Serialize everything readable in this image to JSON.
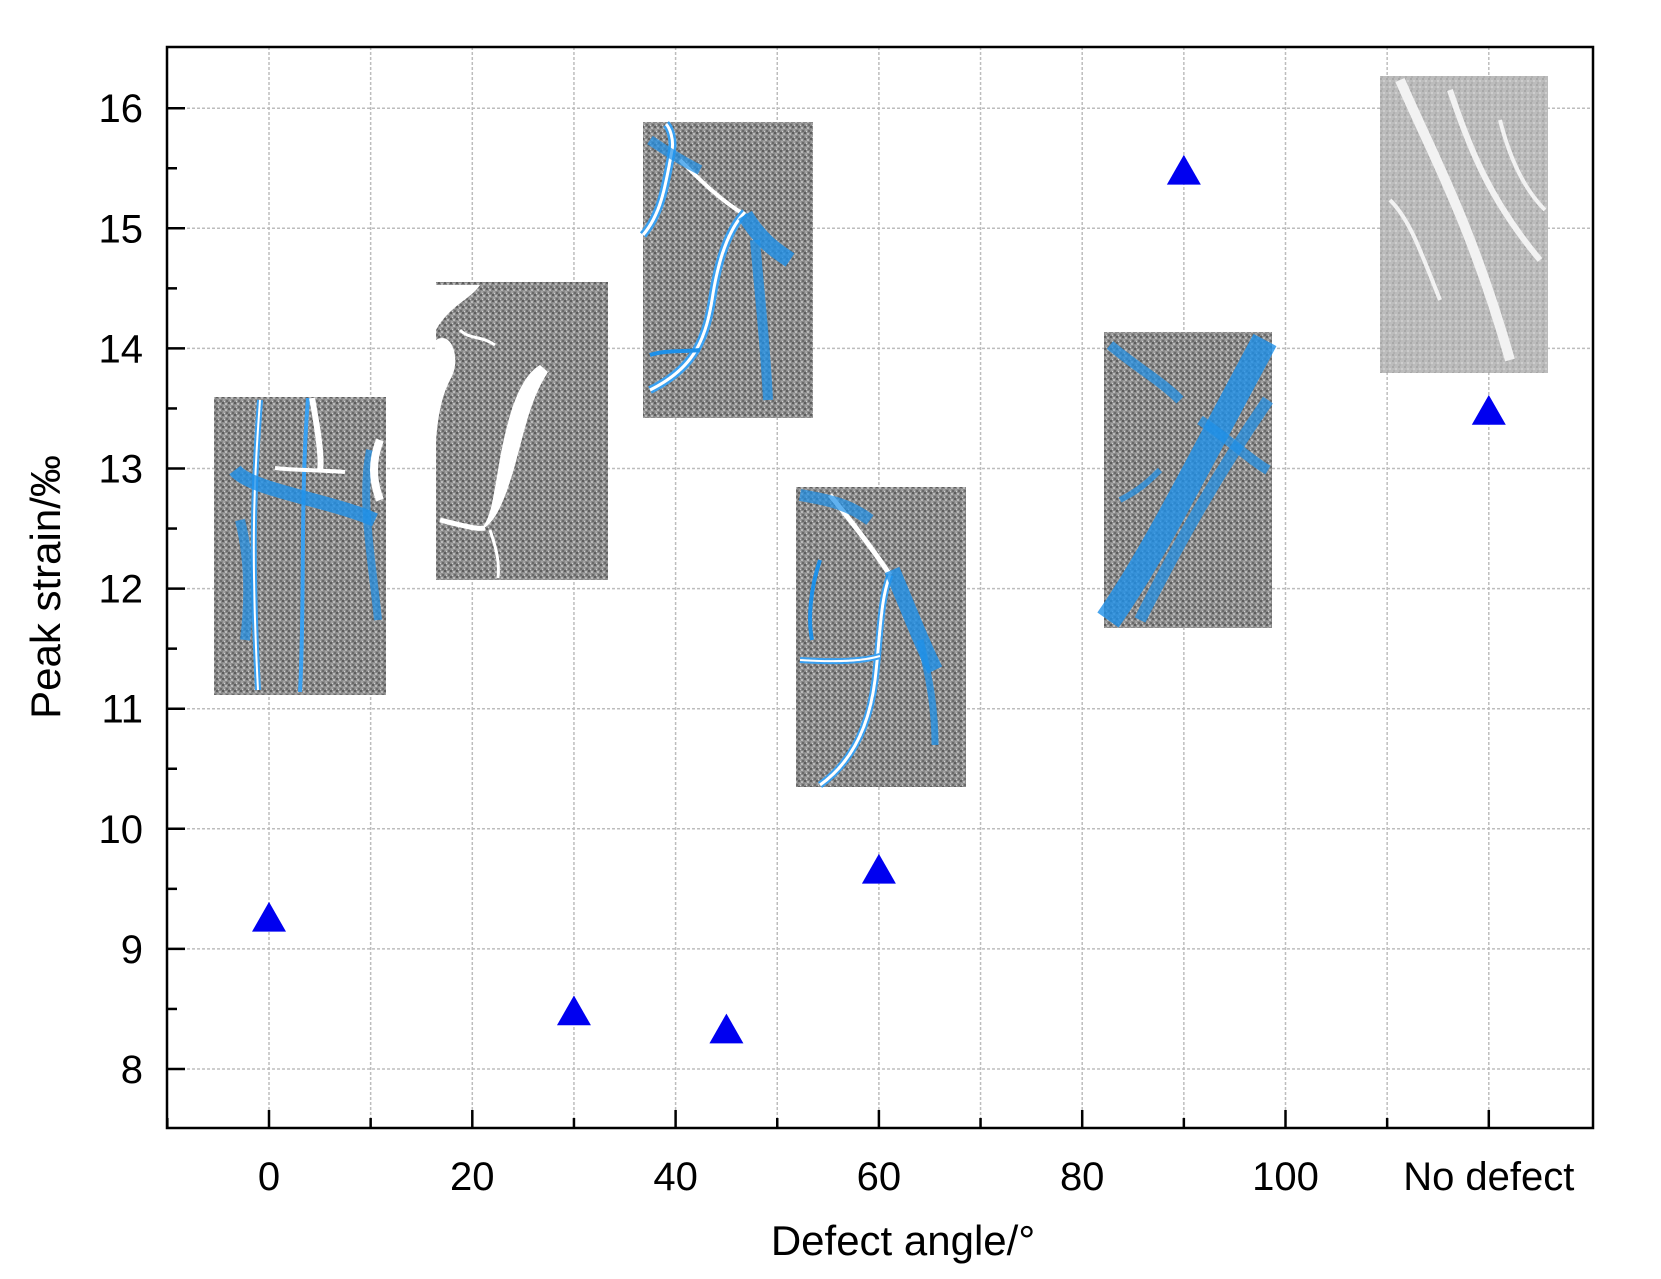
{
  "chart_data": {
    "type": "scatter",
    "title": "",
    "xlabel": "Defect angle/°",
    "ylabel_text": "Peak strain/",
    "ylabel_unit": "‰",
    "x_tick_labels": [
      "0",
      "20",
      "40",
      "60",
      "80",
      "100",
      "No defect"
    ],
    "y_tick_labels": [
      "8",
      "9",
      "10",
      "11",
      "12",
      "13",
      "14",
      "15",
      "16"
    ],
    "x_tick_values": [
      0,
      20,
      40,
      60,
      80,
      100,
      120
    ],
    "y_tick_values": [
      8,
      9,
      10,
      11,
      12,
      13,
      14,
      15,
      16
    ],
    "xlim": [
      -20,
      130
    ],
    "ylim": [
      7.5,
      16.5
    ],
    "grid": true,
    "marker": "triangle",
    "marker_color": "#0000f0",
    "points": [
      {
        "x_label": "0",
        "x": 0,
        "y": 9.25
      },
      {
        "x_label": "30",
        "x": 30,
        "y": 8.47
      },
      {
        "x_label": "45",
        "x": 45,
        "y": 8.32
      },
      {
        "x_label": "60",
        "x": 60,
        "y": 9.65
      },
      {
        "x_label": "90",
        "x": 90,
        "y": 15.47
      },
      {
        "x_label": "No defect",
        "x": 120,
        "y": 13.47
      }
    ],
    "inset_images": [
      {
        "name": "crack-image-0deg",
        "style": "blue-cracks"
      },
      {
        "name": "crack-image-30deg",
        "style": "white-cracks"
      },
      {
        "name": "crack-image-45deg",
        "style": "blue-cracks"
      },
      {
        "name": "crack-image-60deg",
        "style": "blue-cracks"
      },
      {
        "name": "crack-image-90deg",
        "style": "blue-cracks"
      },
      {
        "name": "crack-image-no-defect",
        "style": "light-grey"
      }
    ]
  }
}
